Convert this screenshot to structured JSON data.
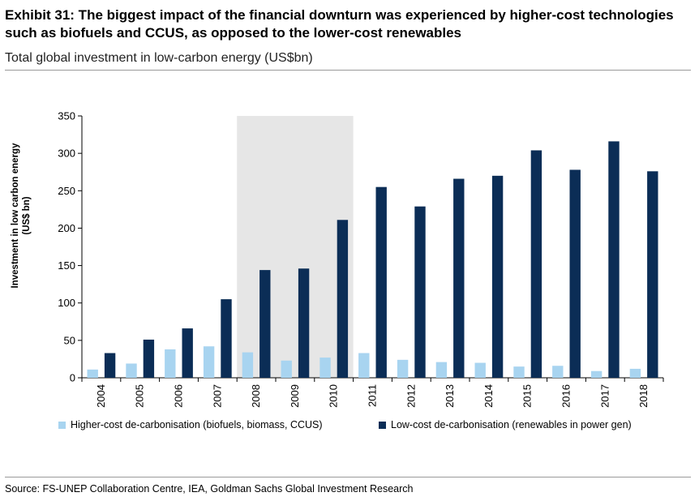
{
  "title": "Exhibit 31: The biggest impact of the financial downturn was experienced by higher-cost technologies such as biofuels and CCUS, as opposed to the lower-cost renewables",
  "subtitle": "Total global investment in low-carbon energy (US$bn)",
  "source": "Source: FS-UNEP Collaboration Centre, IEA, Goldman Sachs Global Investment Research",
  "chart_data": {
    "type": "bar",
    "ylabel": "Investment in low carbon energy (US$ bn)",
    "ylabel_lines": [
      "Investment in low carbon energy",
      "(US$ bn)"
    ],
    "ylim": [
      0,
      350
    ],
    "yticks": [
      0,
      50,
      100,
      150,
      200,
      250,
      300,
      350
    ],
    "grid": false,
    "legend_position": "bottom",
    "highlight_range": [
      "2008",
      "2010"
    ],
    "categories": [
      "2004",
      "2005",
      "2006",
      "2007",
      "2008",
      "2009",
      "2010",
      "2011",
      "2012",
      "2013",
      "2014",
      "2015",
      "2016",
      "2017",
      "2018"
    ],
    "series": [
      {
        "name": "Higher-cost de-carbonisation (biofuels, biomass, CCUS)",
        "color": "#a8d4f0",
        "values": [
          11,
          19,
          38,
          42,
          34,
          23,
          27,
          33,
          24,
          21,
          20,
          15,
          16,
          9,
          12
        ]
      },
      {
        "name": "Low-cost de-carbonisation (renewables in power gen)",
        "color": "#0b2d56",
        "values": [
          33,
          51,
          66,
          105,
          144,
          146,
          211,
          255,
          229,
          266,
          270,
          304,
          278,
          316,
          276
        ]
      }
    ]
  }
}
